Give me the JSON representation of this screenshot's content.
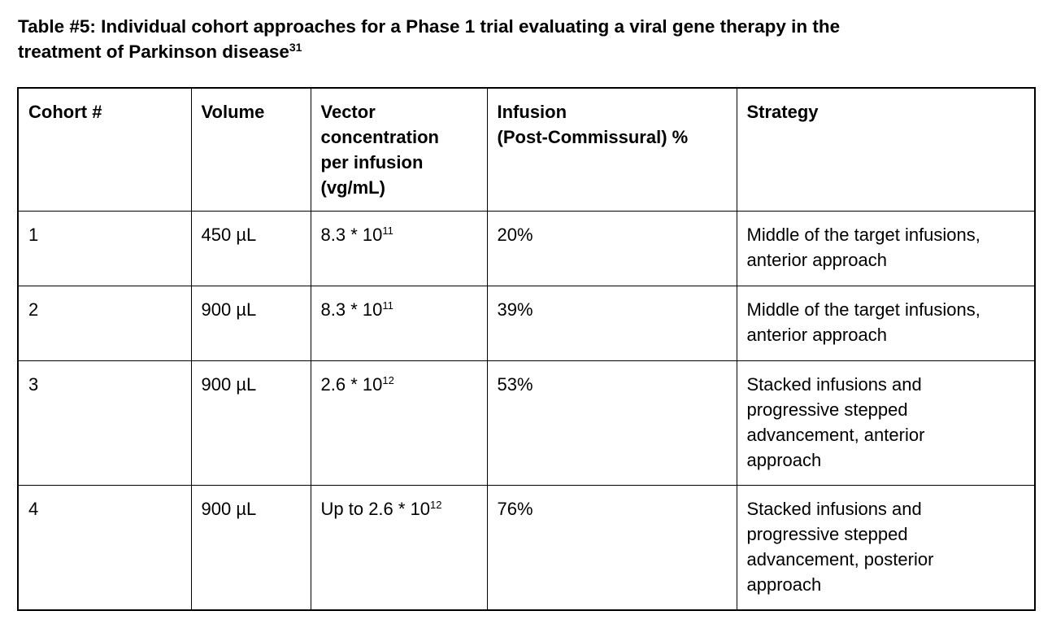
{
  "page": {
    "background_color": "#ffffff",
    "text_color": "#000000",
    "border_color": "#000000"
  },
  "title": {
    "text": "Table #5: Individual cohort approaches for a Phase 1 trial evaluating a viral gene therapy in the\ntreatment of Parkinson disease",
    "footnote_ref": "31"
  },
  "table": {
    "headers": {
      "cohort": "Cohort #",
      "volume": "Volume",
      "vector": "Vector\nconcentration\nper infusion\n(vg/mL)",
      "infusion": "Infusion\n(Post-Commissural) %",
      "strategy": "Strategy"
    },
    "rows": [
      {
        "cohort": "1",
        "volume": "450 µL",
        "vector": {
          "base": "8.3 * 10",
          "exp": "11"
        },
        "infusion": "20%",
        "strategy": "Middle of the target infusions,\nanterior approach"
      },
      {
        "cohort": "2",
        "volume": "900 µL",
        "vector": {
          "base": "8.3 * 10",
          "exp": "11"
        },
        "infusion": "39%",
        "strategy": "Middle of the target infusions,\nanterior approach"
      },
      {
        "cohort": "3",
        "volume": "900 µL",
        "vector": {
          "base": "2.6 * 10",
          "exp": "12"
        },
        "infusion": "53%",
        "strategy": "Stacked infusions and\nprogressive stepped\nadvancement, anterior\napproach"
      },
      {
        "cohort": "4",
        "volume": "900 µL",
        "vector": {
          "base": "Up to 2.6 * 10",
          "exp": "12"
        },
        "infusion": "76%",
        "strategy": "Stacked infusions and\nprogressive stepped\nadvancement, posterior\napproach"
      }
    ]
  }
}
